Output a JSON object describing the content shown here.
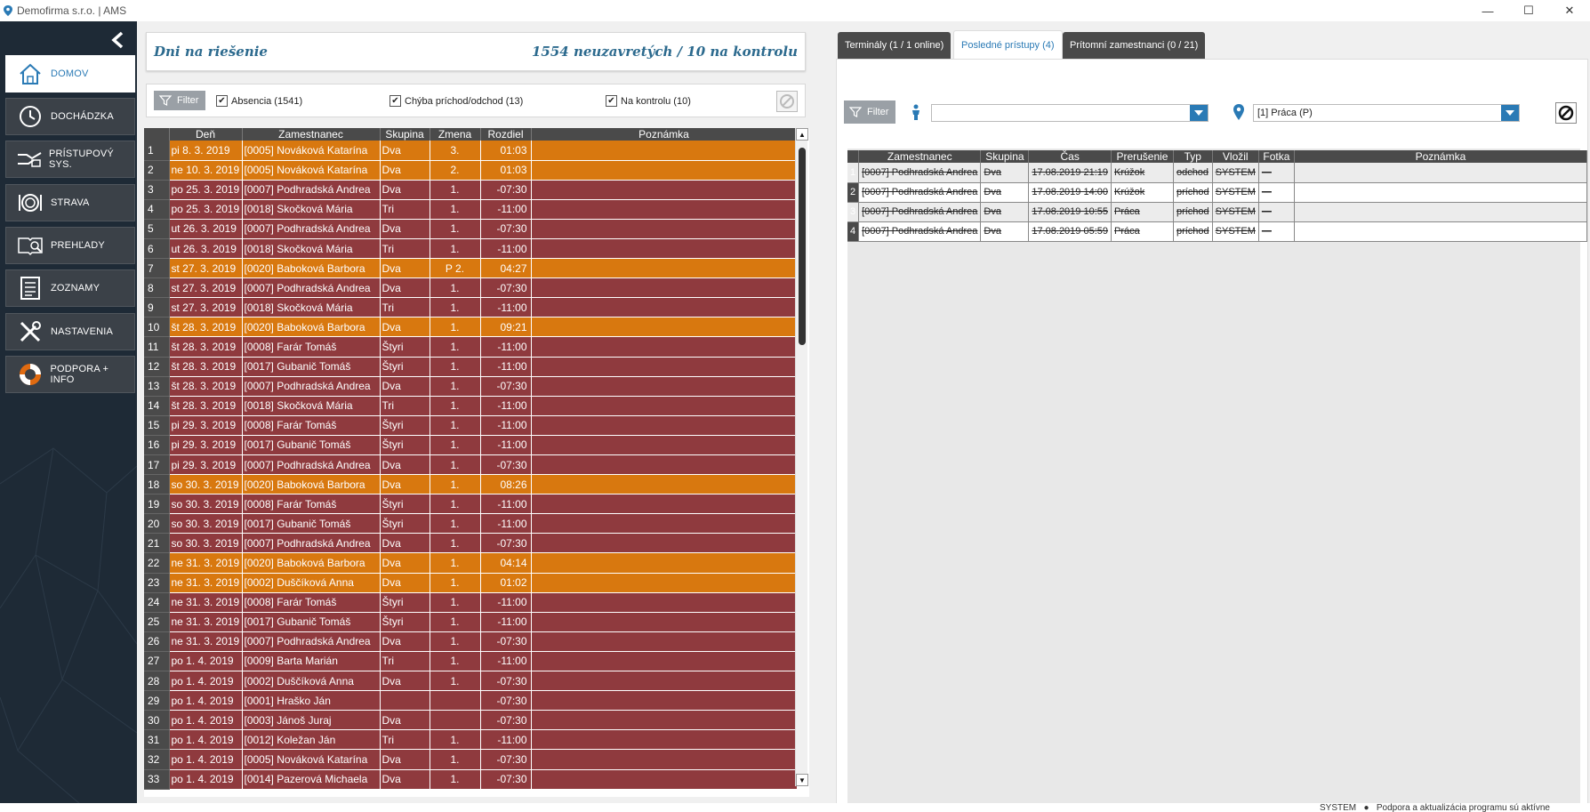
{
  "window": {
    "title": "Demofirma s.r.o. | AMS",
    "minimize": "—",
    "maximize": "☐",
    "close": "✕"
  },
  "sidebar": {
    "items": [
      {
        "label": "DOMOV",
        "icon": "home-icon"
      },
      {
        "label": "DOCHÁDZKA",
        "icon": "clock-icon"
      },
      {
        "label": "PRÍSTUPOVÝ SYS.",
        "icon": "access-icon"
      },
      {
        "label": "STRAVA",
        "icon": "plate-icon"
      },
      {
        "label": "PREHĽADY",
        "icon": "book-search-icon"
      },
      {
        "label": "ZOZNAMY",
        "icon": "list-icon"
      },
      {
        "label": "NASTAVENIA",
        "icon": "tools-icon"
      },
      {
        "label": "PODPORA + INFO",
        "icon": "lifebuoy-icon"
      }
    ]
  },
  "left": {
    "header_title": "Dni na riešenie",
    "header_count": "1554 neuzavretých / 10 na kontrolu",
    "filter_label": "Filter",
    "checks": [
      "Absencia (1541)",
      "Chýba príchod/odchod (13)",
      "Na kontrolu (10)"
    ],
    "columns": [
      "Deň",
      "Zamestnanec",
      "Skupina",
      "Zmena",
      "Rozdiel",
      "Poznámka"
    ],
    "rows": [
      {
        "n": "1",
        "den": "pi 8. 3. 2019",
        "zam": "[0005] Nováková Katarína",
        "sk": "Dva",
        "zm": "3.",
        "roz": "01:03",
        "c": "org"
      },
      {
        "n": "2",
        "den": "ne 10. 3. 2019",
        "zam": "[0005] Nováková Katarína",
        "sk": "Dva",
        "zm": "2.",
        "roz": "01:03",
        "c": "org"
      },
      {
        "n": "3",
        "den": "po 25. 3. 2019",
        "zam": "[0007] Podhradská Andrea",
        "sk": "Dva",
        "zm": "1.",
        "roz": "-07:30",
        "c": "red"
      },
      {
        "n": "4",
        "den": "po 25. 3. 2019",
        "zam": "[0018] Skočková Mária",
        "sk": "Tri",
        "zm": "1.",
        "roz": "-11:00",
        "c": "red"
      },
      {
        "n": "5",
        "den": "ut 26. 3. 2019",
        "zam": "[0007] Podhradská Andrea",
        "sk": "Dva",
        "zm": "1.",
        "roz": "-07:30",
        "c": "red"
      },
      {
        "n": "6",
        "den": "ut 26. 3. 2019",
        "zam": "[0018] Skočková Mária",
        "sk": "Tri",
        "zm": "1.",
        "roz": "-11:00",
        "c": "red"
      },
      {
        "n": "7",
        "den": "st 27. 3. 2019",
        "zam": "[0020] Baboková Barbora",
        "sk": "Dva",
        "zm": "P 2.",
        "roz": "04:27",
        "c": "org"
      },
      {
        "n": "8",
        "den": "st 27. 3. 2019",
        "zam": "[0007] Podhradská Andrea",
        "sk": "Dva",
        "zm": "1.",
        "roz": "-07:30",
        "c": "red"
      },
      {
        "n": "9",
        "den": "st 27. 3. 2019",
        "zam": "[0018] Skočková Mária",
        "sk": "Tri",
        "zm": "1.",
        "roz": "-11:00",
        "c": "red"
      },
      {
        "n": "10",
        "den": "št 28. 3. 2019",
        "zam": "[0020] Baboková Barbora",
        "sk": "Dva",
        "zm": "1.",
        "roz": "09:21",
        "c": "org"
      },
      {
        "n": "11",
        "den": "št 28. 3. 2019",
        "zam": "[0008] Farár Tomáš",
        "sk": "Štyri",
        "zm": "1.",
        "roz": "-11:00",
        "c": "red"
      },
      {
        "n": "12",
        "den": "št 28. 3. 2019",
        "zam": "[0017] Gubanič Tomáš",
        "sk": "Štyri",
        "zm": "1.",
        "roz": "-11:00",
        "c": "red"
      },
      {
        "n": "13",
        "den": "št 28. 3. 2019",
        "zam": "[0007] Podhradská Andrea",
        "sk": "Dva",
        "zm": "1.",
        "roz": "-07:30",
        "c": "red"
      },
      {
        "n": "14",
        "den": "št 28. 3. 2019",
        "zam": "[0018] Skočková Mária",
        "sk": "Tri",
        "zm": "1.",
        "roz": "-11:00",
        "c": "red"
      },
      {
        "n": "15",
        "den": "pi 29. 3. 2019",
        "zam": "[0008] Farár Tomáš",
        "sk": "Štyri",
        "zm": "1.",
        "roz": "-11:00",
        "c": "red"
      },
      {
        "n": "16",
        "den": "pi 29. 3. 2019",
        "zam": "[0017] Gubanič Tomáš",
        "sk": "Štyri",
        "zm": "1.",
        "roz": "-11:00",
        "c": "red"
      },
      {
        "n": "17",
        "den": "pi 29. 3. 2019",
        "zam": "[0007] Podhradská Andrea",
        "sk": "Dva",
        "zm": "1.",
        "roz": "-07:30",
        "c": "red"
      },
      {
        "n": "18",
        "den": "so 30. 3. 2019",
        "zam": "[0020] Baboková Barbora",
        "sk": "Dva",
        "zm": "1.",
        "roz": "08:26",
        "c": "org"
      },
      {
        "n": "19",
        "den": "so 30. 3. 2019",
        "zam": "[0008] Farár Tomáš",
        "sk": "Štyri",
        "zm": "1.",
        "roz": "-11:00",
        "c": "red"
      },
      {
        "n": "20",
        "den": "so 30. 3. 2019",
        "zam": "[0017] Gubanič Tomáš",
        "sk": "Štyri",
        "zm": "1.",
        "roz": "-11:00",
        "c": "red"
      },
      {
        "n": "21",
        "den": "so 30. 3. 2019",
        "zam": "[0007] Podhradská Andrea",
        "sk": "Dva",
        "zm": "1.",
        "roz": "-07:30",
        "c": "red"
      },
      {
        "n": "22",
        "den": "ne 31. 3. 2019",
        "zam": "[0020] Baboková Barbora",
        "sk": "Dva",
        "zm": "1.",
        "roz": "04:14",
        "c": "org"
      },
      {
        "n": "23",
        "den": "ne 31. 3. 2019",
        "zam": "[0002] Duščíková Anna",
        "sk": "Dva",
        "zm": "1.",
        "roz": "01:02",
        "c": "org"
      },
      {
        "n": "24",
        "den": "ne 31. 3. 2019",
        "zam": "[0008] Farár Tomáš",
        "sk": "Štyri",
        "zm": "1.",
        "roz": "-11:00",
        "c": "red"
      },
      {
        "n": "25",
        "den": "ne 31. 3. 2019",
        "zam": "[0017] Gubanič Tomáš",
        "sk": "Štyri",
        "zm": "1.",
        "roz": "-11:00",
        "c": "red"
      },
      {
        "n": "26",
        "den": "ne 31. 3. 2019",
        "zam": "[0007] Podhradská Andrea",
        "sk": "Dva",
        "zm": "1.",
        "roz": "-07:30",
        "c": "red"
      },
      {
        "n": "27",
        "den": "po 1. 4. 2019",
        "zam": "[0009] Barta Marián",
        "sk": "Tri",
        "zm": "1.",
        "roz": "-11:00",
        "c": "red"
      },
      {
        "n": "28",
        "den": "po 1. 4. 2019",
        "zam": "[0002] Duščíková Anna",
        "sk": "Dva",
        "zm": "1.",
        "roz": "-07:30",
        "c": "red"
      },
      {
        "n": "29",
        "den": "po 1. 4. 2019",
        "zam": "[0001] Hraško Ján",
        "sk": "",
        "zm": "",
        "roz": "-07:30",
        "c": "red"
      },
      {
        "n": "30",
        "den": "po 1. 4. 2019",
        "zam": "[0003] Jánoš Juraj",
        "sk": "Dva",
        "zm": "",
        "roz": "-07:30",
        "c": "red"
      },
      {
        "n": "31",
        "den": "po 1. 4. 2019",
        "zam": "[0012] Koležan Ján",
        "sk": "Tri",
        "zm": "1.",
        "roz": "-11:00",
        "c": "red"
      },
      {
        "n": "32",
        "den": "po 1. 4. 2019",
        "zam": "[0005] Nováková Katarína",
        "sk": "Dva",
        "zm": "1.",
        "roz": "-07:30",
        "c": "red"
      },
      {
        "n": "33",
        "den": "po 1. 4. 2019",
        "zam": "[0014] Pazerová Michaela",
        "sk": "Dva",
        "zm": "1.",
        "roz": "-07:30",
        "c": "red"
      }
    ]
  },
  "right": {
    "tabs": [
      "Terminály (1 / 1 online)",
      "Posledné prístupy (4)",
      "Prítomní zamestnanci (0 / 21)"
    ],
    "filter_label": "Filter",
    "person_value": "",
    "location_value": "[1] Práca (P)",
    "columns": [
      "Zamestnanec",
      "Skupina",
      "Čas",
      "Prerušenie",
      "Typ",
      "Vložil",
      "Fotka",
      "Poznámka"
    ],
    "rows": [
      {
        "n": "1",
        "zam": "[0007] Podhradská Andrea",
        "sk": "Dva",
        "cas": "17.08.2019 21:19",
        "pr": "Krúžok",
        "typ": "odchod",
        "vl": "SYSTEM",
        "fo": "—",
        "po": ""
      },
      {
        "n": "2",
        "zam": "[0007] Podhradská Andrea",
        "sk": "Dva",
        "cas": "17.08.2019 14:00",
        "pr": "Krúžok",
        "typ": "príchod",
        "vl": "SYSTEM",
        "fo": "—",
        "po": ""
      },
      {
        "n": "3",
        "zam": "[0007] Podhradská Andrea",
        "sk": "Dva",
        "cas": "17.08.2019 10:55",
        "pr": "Práca",
        "typ": "príchod",
        "vl": "SYSTEM",
        "fo": "—",
        "po": ""
      },
      {
        "n": "4",
        "zam": "[0007] Podhradská Andrea",
        "sk": "Dva",
        "cas": "17.08.2019 05:59",
        "pr": "Práca",
        "typ": "príchod",
        "vl": "SYSTEM",
        "fo": "—",
        "po": ""
      }
    ]
  },
  "status": {
    "user": "SYSTEM",
    "text": "Podpora a aktualizácia programu sú aktívne"
  },
  "colors": {
    "accent": "#2a7ab5",
    "row_red": "#8f3a3e",
    "row_orange": "#d8780f",
    "sidebar_bg": "#1e2a36"
  }
}
